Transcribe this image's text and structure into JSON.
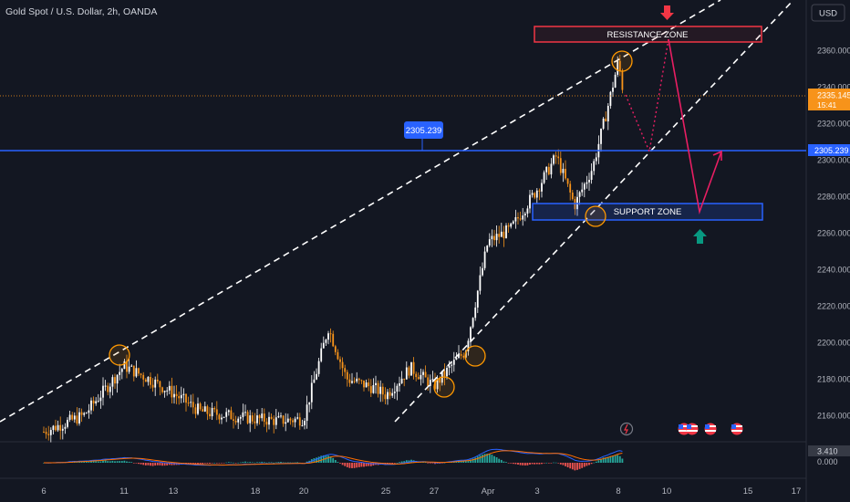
{
  "header": {
    "title": "Gold Spot / U.S. Dollar, 2h, OANDA"
  },
  "currency_button": {
    "label": "USD"
  },
  "price_axis": {
    "ticks": [
      "2360.000",
      "2340.000",
      "2320.000",
      "2300.000",
      "2280.000",
      "2260.000",
      "2240.000",
      "2220.000",
      "2200.000",
      "2180.000",
      "2160.000"
    ],
    "current_price": "2335.145",
    "countdown": "15:41",
    "level_badge": "2305.239"
  },
  "level_label": "2305.239",
  "zones": {
    "resistance": "RESISTANCE ZONE",
    "support": "SUPPORT ZONE"
  },
  "time_axis": [
    "6",
    "11",
    "13",
    "18",
    "20",
    "25",
    "27",
    "Apr",
    "3",
    "8",
    "10",
    "15",
    "17"
  ],
  "indicator": {
    "value": "3.410",
    "zero": "0.000"
  },
  "colors": {
    "background": "#131722",
    "candle_up": "#ffffff",
    "candle_down": "#f7931a",
    "level_line": "#2962ff",
    "resistance": "#f23645",
    "support": "#2962ff",
    "projection": "#e91e63",
    "arrow_down": "#f23645",
    "arrow_up": "#089981",
    "circle": "#ff9800"
  },
  "chart_data": {
    "type": "candlestick",
    "y_range": [
      2145,
      2375
    ],
    "key_level": 2305.239,
    "current_price": 2335.145,
    "resistance_zone": [
      2356,
      2364
    ],
    "support_zone": [
      2267,
      2276
    ],
    "close_path": [
      {
        "x": "6",
        "y": 2151
      },
      {
        "x": "9",
        "y": 2160
      },
      {
        "x": "11",
        "y": 2187
      },
      {
        "x": "12",
        "y": 2180
      },
      {
        "x": "13",
        "y": 2172
      },
      {
        "x": "15",
        "y": 2162
      },
      {
        "x": "18",
        "y": 2158
      },
      {
        "x": "19",
        "y": 2157
      },
      {
        "x": "20",
        "y": 2158
      },
      {
        "x": "21",
        "y": 2208
      },
      {
        "x": "22",
        "y": 2180
      },
      {
        "x": "24",
        "y": 2175
      },
      {
        "x": "25",
        "y": 2171
      },
      {
        "x": "26",
        "y": 2186
      },
      {
        "x": "27",
        "y": 2176
      },
      {
        "x": "28",
        "y": 2190
      },
      {
        "x": "29",
        "y": 2195
      },
      {
        "x": "Apr",
        "y": 2255
      },
      {
        "x": "2",
        "y": 2262
      },
      {
        "x": "3",
        "y": 2284
      },
      {
        "x": "4",
        "y": 2302
      },
      {
        "x": "5",
        "y": 2275
      },
      {
        "x": "6",
        "y": 2296
      },
      {
        "x": "7",
        "y": 2328
      },
      {
        "x": "8",
        "y": 2354
      },
      {
        "x": "8",
        "y": 2335
      }
    ],
    "projection": [
      2335,
      2305,
      2362,
      2272,
      2300
    ]
  }
}
